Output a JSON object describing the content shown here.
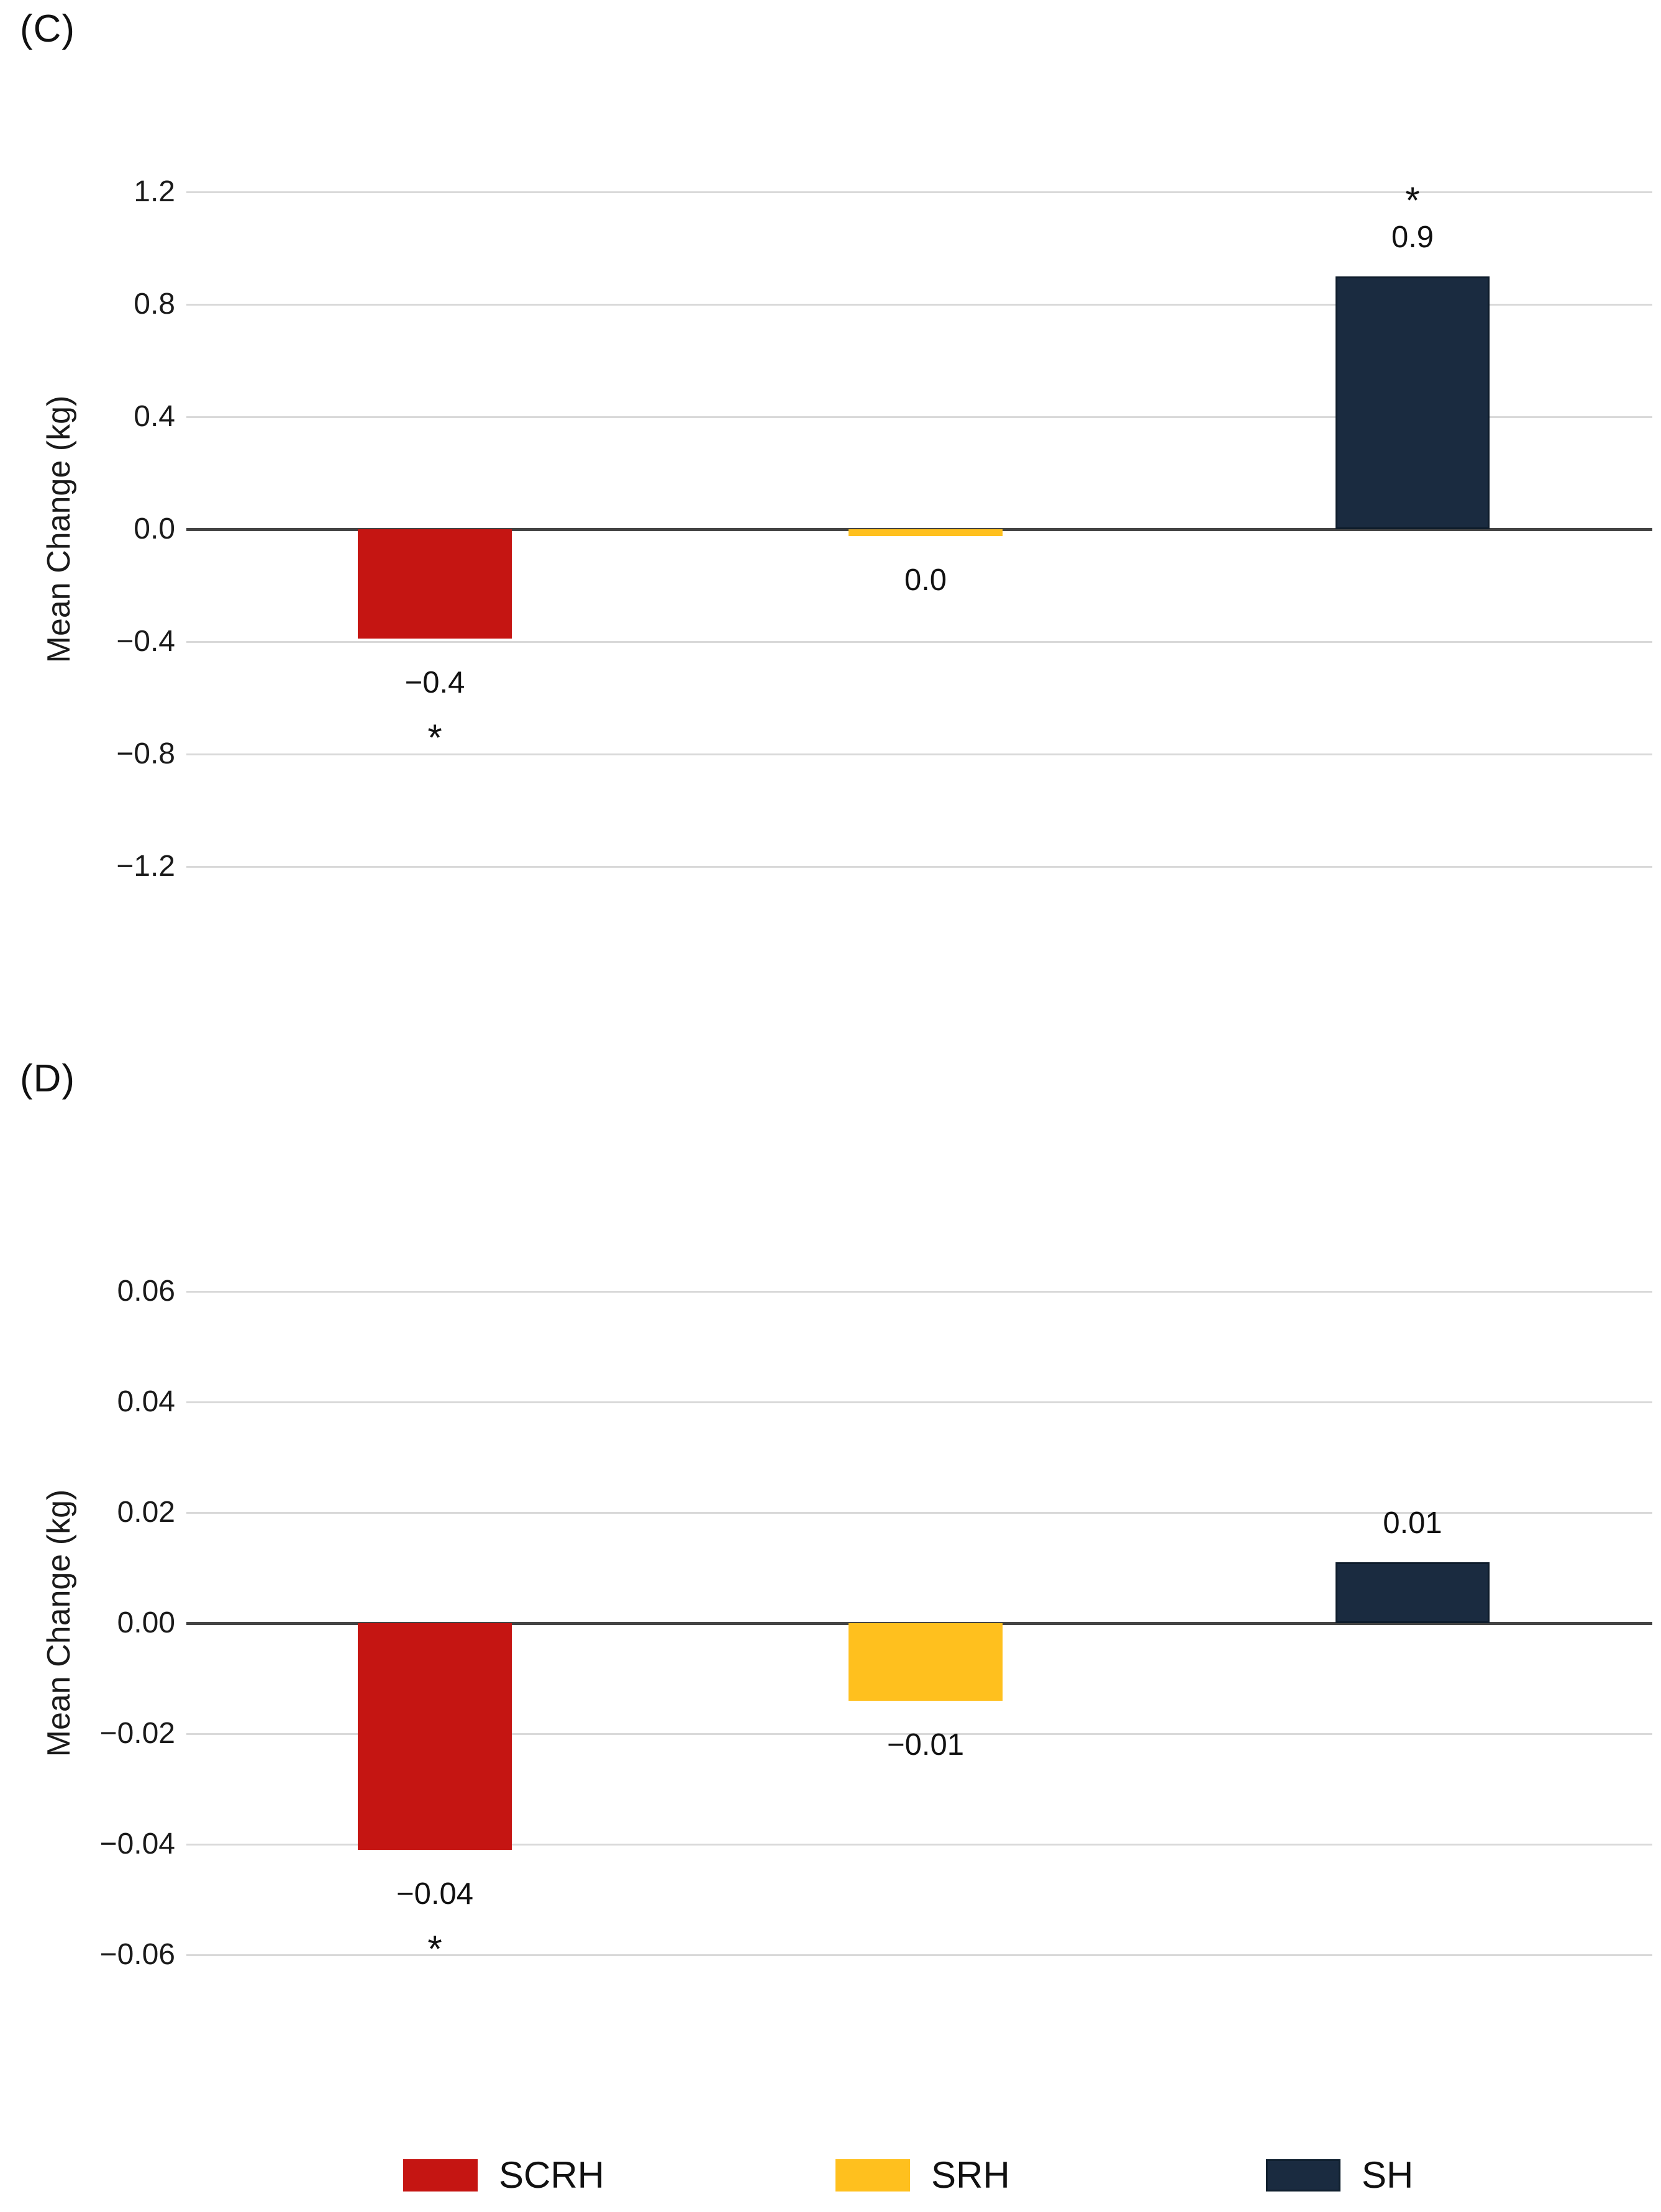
{
  "figure": {
    "background": "#ffffff"
  },
  "panels": [
    {
      "label": "(C)",
      "ylabel": "Mean Change (kg)",
      "ytick_labels": [
        "1.2",
        "0.8",
        "0.4",
        "0.0",
        "−0.4",
        "−0.8",
        "−1.2"
      ]
    },
    {
      "label": "(D)",
      "ylabel": "Mean Change (kg)",
      "ytick_labels": [
        "0.06",
        "0.04",
        "0.02",
        "0.00",
        "−0.02",
        "−0.04",
        "−0.06"
      ]
    }
  ],
  "legend": {
    "items": [
      {
        "label": "SCRH",
        "color": "#C51512",
        "bordered": false
      },
      {
        "label": "SRH",
        "color": "#FFC01E",
        "bordered": false
      },
      {
        "label": "SH",
        "color": "#1A2B40",
        "bordered": true
      }
    ]
  },
  "colors": {
    "scrh": "#C51512",
    "srh": "#FFC01E",
    "sh": "#1A2B40",
    "gridline": "#d9d9d9",
    "zero_axis": "#454545",
    "text": "#111111"
  },
  "chart_data": [
    {
      "type": "bar",
      "panel": "(C)",
      "title": "",
      "xlabel": "",
      "ylabel": "Mean Change (kg)",
      "categories": [
        "SCRH",
        "SRH",
        "SH"
      ],
      "values": [
        -0.4,
        0.0,
        0.9
      ],
      "bar_drawn_values": [
        -0.39,
        -0.025,
        0.9
      ],
      "data_labels": [
        "−0.4",
        "0.0",
        "0.9"
      ],
      "significant": [
        true,
        false,
        true
      ],
      "series_colors": [
        "#C51512",
        "#FFC01E",
        "#1A2B40"
      ],
      "yticks": [
        1.2,
        0.8,
        0.4,
        0.0,
        -0.4,
        -0.8,
        -1.2
      ],
      "ylim": [
        -1.2,
        1.2
      ],
      "grid": true,
      "legend_position": "bottom"
    },
    {
      "type": "bar",
      "panel": "(D)",
      "title": "",
      "xlabel": "",
      "ylabel": "Mean Change (kg)",
      "categories": [
        "SCRH",
        "SRH",
        "SH"
      ],
      "values": [
        -0.04,
        -0.01,
        0.01
      ],
      "bar_drawn_values": [
        -0.041,
        -0.014,
        0.011
      ],
      "data_labels": [
        "−0.04",
        "−0.01",
        "0.01"
      ],
      "significant": [
        true,
        false,
        false
      ],
      "series_colors": [
        "#C51512",
        "#FFC01E",
        "#1A2B40"
      ],
      "yticks": [
        0.06,
        0.04,
        0.02,
        0.0,
        -0.02,
        -0.04,
        -0.06
      ],
      "ylim": [
        -0.06,
        0.06
      ],
      "grid": true,
      "legend_position": "bottom"
    }
  ]
}
